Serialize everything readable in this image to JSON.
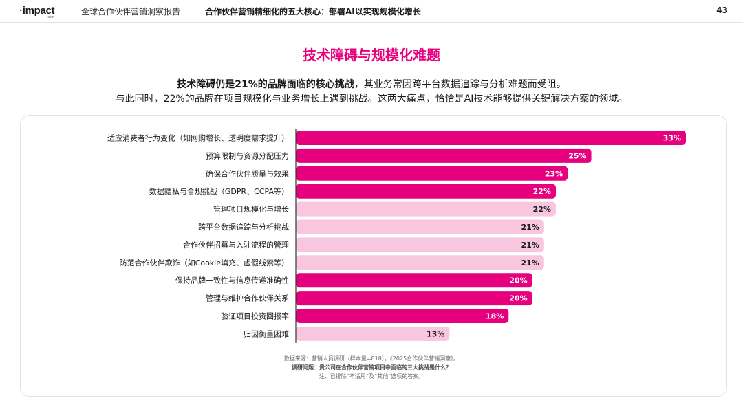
{
  "header": {
    "logo_text": "impact",
    "logo_sub": ".com",
    "report_name": "全球合作伙伴营销洞察报告",
    "section_title": "合作伙伴营销精细化的五大核心：部署AI以实现规模化增长",
    "page_number": "43"
  },
  "title": "技术障碍与规模化难题",
  "intro": {
    "line1_bold": "技术障碍仍是21%的品牌面临的核心挑战",
    "line1_rest": "，其业务常因跨平台数据追踪与分析难题而受阻。",
    "line2": "与此同时，22%的品牌在项目规模化与业务增长上遇到挑战。这两大痛点，恰恰是AI技术能够提供关键解决方案的领域。"
  },
  "colors": {
    "accent": "#e6007e",
    "bar_dark": "#e6007e",
    "bar_light": "#f9c6df",
    "axis": "#333333"
  },
  "chart_data": {
    "type": "bar",
    "orientation": "horizontal",
    "categories": [
      "适应消费者行为变化（如网购增长、透明度需求提升）",
      "预算限制与资源分配压力",
      "确保合作伙伴质量与效果",
      "数据隐私与合规挑战（GDPR、CCPA等）",
      "管理项目规模化与增长",
      "跨平台数据追踪与分析挑战",
      "合作伙伴招募与入驻流程的管理",
      "防范合作伙伴欺诈（如Cookie填充、虚假线索等）",
      "保持品牌一致性与信息传递准确性",
      "管理与维护合作伙伴关系",
      "验证项目投资回报率",
      "归因衡量困难"
    ],
    "values": [
      33,
      25,
      23,
      22,
      22,
      21,
      21,
      21,
      20,
      20,
      18,
      13
    ],
    "value_labels": [
      "33%",
      "25%",
      "23%",
      "22%",
      "22%",
      "21%",
      "21%",
      "21%",
      "20%",
      "20%",
      "18%",
      "13%"
    ],
    "highlight": [
      true,
      true,
      true,
      true,
      false,
      false,
      false,
      false,
      true,
      true,
      true,
      false
    ],
    "unit": "%",
    "xlim": [
      0,
      33
    ],
    "grid": false,
    "legend": "none"
  },
  "footnote": {
    "source": "数据来源：营销人员调研（样本量=818），《2025合作伙伴营销洞察》。",
    "question": "调研问题：贵公司在合作伙伴营销项目中面临的三大挑战是什么？",
    "note": "注：已排除“不适用”及“其他”选项的答案。"
  }
}
